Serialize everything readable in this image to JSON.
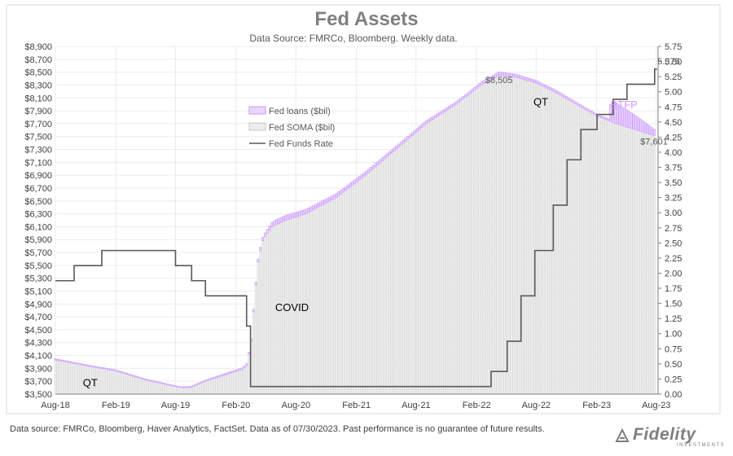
{
  "chart_data": {
    "type": "bar",
    "title": "Fed Assets",
    "subtitle": "Data Source: FMRCo, Bloomberg.  Weekly data.",
    "left_axis": {
      "unit": "$bil",
      "ylim": [
        3500,
        8900
      ],
      "ticks": [
        "$3,500",
        "$3,700",
        "$3,900",
        "$4,100",
        "$4,300",
        "$4,500",
        "$4,700",
        "$4,900",
        "$5,100",
        "$5,300",
        "$5,500",
        "$5,700",
        "$5,900",
        "$6,100",
        "$6,300",
        "$6,500",
        "$6,700",
        "$6,900",
        "$7,100",
        "$7,300",
        "$7,500",
        "$7,700",
        "$7,900",
        "$8,100",
        "$8,300",
        "$8,500",
        "$8,700",
        "$8,900"
      ]
    },
    "right_axis": {
      "unit": "%",
      "ylim": [
        0,
        5.75
      ],
      "ticks": [
        "0.00",
        "0.25",
        "0.50",
        "0.75",
        "1.00",
        "1.25",
        "1.50",
        "1.75",
        "2.00",
        "2.25",
        "2.50",
        "2.75",
        "3.00",
        "3.25",
        "3.50",
        "3.75",
        "4.00",
        "4.25",
        "4.50",
        "4.75",
        "5.00",
        "5.25",
        "5.50",
        "5.75"
      ]
    },
    "x_ticks": [
      "Aug-18",
      "Feb-19",
      "Aug-19",
      "Feb-20",
      "Aug-20",
      "Feb-21",
      "Aug-21",
      "Feb-22",
      "Aug-22",
      "Feb-23",
      "Aug-23"
    ],
    "x_range": [
      "2018-08-01",
      "2023-07-30"
    ],
    "grid": true,
    "legend": {
      "placement": "upper-left-center",
      "entries": [
        "Fed loans ($bil)",
        "Fed SOMA ($bil)",
        "Fed Funds Rate"
      ]
    },
    "series": [
      {
        "name": "Fed SOMA ($bil)",
        "axis": "left",
        "style": "bars",
        "color": "#ececec",
        "points": [
          [
            "2018-08-01",
            4030
          ],
          [
            "2018-11-01",
            3940
          ],
          [
            "2019-02-01",
            3860
          ],
          [
            "2019-05-01",
            3720
          ],
          [
            "2019-08-15",
            3600
          ],
          [
            "2019-09-15",
            3600
          ],
          [
            "2019-11-01",
            3700
          ],
          [
            "2020-01-01",
            3800
          ],
          [
            "2020-02-20",
            3880
          ],
          [
            "2020-03-05",
            3950
          ],
          [
            "2020-03-12",
            4150
          ],
          [
            "2020-03-19",
            4350
          ],
          [
            "2020-03-26",
            4850
          ],
          [
            "2020-04-02",
            5250
          ],
          [
            "2020-04-09",
            5600
          ],
          [
            "2020-04-23",
            5900
          ],
          [
            "2020-05-21",
            6100
          ],
          [
            "2020-07-01",
            6200
          ],
          [
            "2020-09-01",
            6300
          ],
          [
            "2020-12-01",
            6550
          ],
          [
            "2021-03-01",
            6900
          ],
          [
            "2021-06-01",
            7300
          ],
          [
            "2021-09-01",
            7700
          ],
          [
            "2021-12-01",
            8000
          ],
          [
            "2022-02-15",
            8300
          ],
          [
            "2022-04-10",
            8450
          ],
          [
            "2022-06-01",
            8420
          ],
          [
            "2022-08-01",
            8330
          ],
          [
            "2022-10-01",
            8180
          ],
          [
            "2022-12-01",
            8000
          ],
          [
            "2023-02-01",
            7820
          ],
          [
            "2023-04-01",
            7700
          ],
          [
            "2023-06-01",
            7600
          ],
          [
            "2023-07-30",
            7510
          ]
        ]
      },
      {
        "name": "Fed loans ($bil)",
        "axis": "left",
        "style": "bars-stacked",
        "color": "#cc99ff",
        "points": [
          [
            "2018-08-01",
            20
          ],
          [
            "2019-08-15",
            15
          ],
          [
            "2020-03-12",
            30
          ],
          [
            "2020-04-09",
            50
          ],
          [
            "2020-06-01",
            80
          ],
          [
            "2021-01-01",
            60
          ],
          [
            "2021-06-01",
            50
          ],
          [
            "2022-01-01",
            40
          ],
          [
            "2022-04-10",
            55
          ],
          [
            "2022-09-01",
            40
          ],
          [
            "2023-02-01",
            30
          ],
          [
            "2023-03-09",
            30
          ],
          [
            "2023-03-16",
            300
          ],
          [
            "2023-03-30",
            330
          ],
          [
            "2023-04-27",
            280
          ],
          [
            "2023-06-01",
            220
          ],
          [
            "2023-07-30",
            90
          ]
        ]
      },
      {
        "name": "Fed Funds Rate",
        "axis": "right",
        "style": "step-line",
        "color": "#595959",
        "points": [
          [
            "2018-08-01",
            1.875
          ],
          [
            "2018-09-27",
            2.125
          ],
          [
            "2018-12-20",
            2.375
          ],
          [
            "2019-08-01",
            2.125
          ],
          [
            "2019-09-19",
            1.875
          ],
          [
            "2019-10-31",
            1.625
          ],
          [
            "2020-03-04",
            1.125
          ],
          [
            "2020-03-16",
            0.125
          ],
          [
            "2022-03-17",
            0.375
          ],
          [
            "2022-05-05",
            0.875
          ],
          [
            "2022-06-16",
            1.625
          ],
          [
            "2022-07-28",
            2.375
          ],
          [
            "2022-09-22",
            3.125
          ],
          [
            "2022-11-03",
            3.875
          ],
          [
            "2022-12-15",
            4.375
          ],
          [
            "2023-02-02",
            4.625
          ],
          [
            "2023-03-23",
            4.875
          ],
          [
            "2023-05-04",
            5.125
          ],
          [
            "2023-07-27",
            5.375
          ]
        ]
      }
    ],
    "annotations": [
      {
        "text": "$8,505",
        "at": [
          "2022-04-10",
          8505
        ],
        "axis": "left"
      },
      {
        "text": "$7,601",
        "at": [
          "2023-07-30",
          7601
        ],
        "axis": "left"
      },
      {
        "text": "5.375",
        "at": [
          "2023-07-30",
          5.375
        ],
        "axis": "right"
      },
      {
        "text": "QT",
        "at": [
          "2018-11-15",
          3620
        ],
        "axis": "left"
      },
      {
        "text": "QT",
        "at": [
          "2022-08-15",
          7980
        ],
        "axis": "left"
      },
      {
        "text": "COVID",
        "at": [
          "2020-07-20",
          4790
        ],
        "axis": "left"
      },
      {
        "text": "BTFP",
        "at": [
          "2023-04-25",
          7940
        ],
        "axis": "left",
        "color": "#cc99ff"
      }
    ]
  },
  "footnote": "Data source: FMRCo, Bloomberg, Haver Analytics, FactSet. Data as of 07/30/2023. Past performance is no guarantee of future results.",
  "logo": {
    "text": "Fidelity",
    "subtext": "INVESTMENTS"
  }
}
